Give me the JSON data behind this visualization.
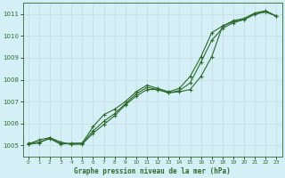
{
  "title": "Graphe pression niveau de la mer (hPa)",
  "bg_color": "#d4eff5",
  "grid_color": "#c8e0e8",
  "line_color": "#2d6a2d",
  "xlim": [
    -0.5,
    23.5
  ],
  "ylim": [
    1004.5,
    1011.5
  ],
  "yticks": [
    1005,
    1006,
    1007,
    1008,
    1009,
    1010,
    1011
  ],
  "xticks": [
    0,
    1,
    2,
    3,
    4,
    5,
    6,
    7,
    8,
    9,
    10,
    11,
    12,
    13,
    14,
    15,
    16,
    17,
    18,
    19,
    20,
    21,
    22,
    23
  ],
  "series1_x": [
    0,
    1,
    2,
    3,
    4,
    5,
    6,
    7,
    8,
    9,
    10,
    11,
    12,
    13,
    14,
    15,
    16,
    17,
    18,
    19,
    20,
    21,
    22,
    23
  ],
  "series1_y": [
    1005.05,
    1005.25,
    1005.35,
    1005.15,
    1005.05,
    1005.05,
    1005.55,
    1005.95,
    1006.35,
    1006.85,
    1007.25,
    1007.55,
    1007.55,
    1007.4,
    1007.45,
    1007.55,
    1008.15,
    1009.05,
    1010.45,
    1010.65,
    1010.75,
    1011.0,
    1011.1,
    1010.9
  ],
  "series2_x": [
    0,
    1,
    2,
    3,
    4,
    5,
    6,
    7,
    8,
    9,
    10,
    11,
    12,
    13,
    14,
    15,
    16,
    17,
    18,
    19,
    20,
    21,
    22,
    23
  ],
  "series2_y": [
    1005.1,
    1005.15,
    1005.3,
    1005.05,
    1005.1,
    1005.1,
    1005.85,
    1006.4,
    1006.65,
    1007.0,
    1007.45,
    1007.75,
    1007.6,
    1007.45,
    1007.6,
    1008.15,
    1009.05,
    1010.15,
    1010.45,
    1010.7,
    1010.8,
    1011.05,
    1011.15,
    1010.9
  ],
  "series3_x": [
    0,
    1,
    2,
    3,
    4,
    5,
    6,
    7,
    8,
    9,
    10,
    11,
    12,
    13,
    14,
    15,
    16,
    17,
    18,
    19,
    20,
    21,
    22,
    23
  ],
  "series3_y": [
    1005.05,
    1005.1,
    1005.35,
    1005.1,
    1005.05,
    1005.1,
    1005.65,
    1006.1,
    1006.45,
    1006.9,
    1007.35,
    1007.65,
    1007.55,
    1007.4,
    1007.5,
    1007.85,
    1008.8,
    1009.8,
    1010.35,
    1010.6,
    1010.75,
    1011.0,
    1011.1,
    1010.9
  ]
}
